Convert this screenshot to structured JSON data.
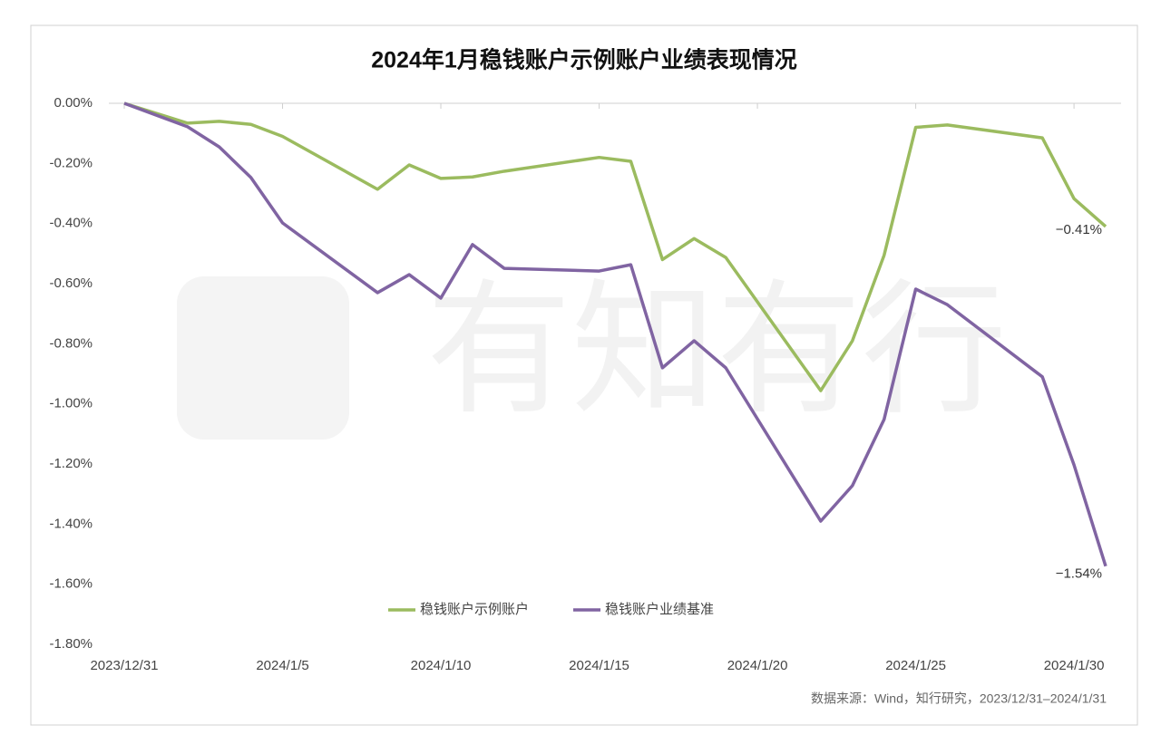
{
  "chart_data": {
    "type": "line",
    "title": "2024年1月稳钱账户示例账户业绩表现情况",
    "source": "数据来源：Wind，知行研究，2023/12/31–2024/1/31",
    "watermark": "有知有行",
    "x": [
      "2023/12/31",
      "2024/1/2",
      "2024/1/3",
      "2024/1/4",
      "2024/1/5",
      "2024/1/8",
      "2024/1/9",
      "2024/1/10",
      "2024/1/11",
      "2024/1/12",
      "2024/1/15",
      "2024/1/16",
      "2024/1/17",
      "2024/1/18",
      "2024/1/19",
      "2024/1/22",
      "2024/1/23",
      "2024/1/24",
      "2024/1/25",
      "2024/1/26",
      "2024/1/29",
      "2024/1/30",
      "2024/1/31"
    ],
    "xticks": [
      "2023/12/31",
      "2024/1/5",
      "2024/1/10",
      "2024/1/15",
      "2024/1/20",
      "2024/1/25",
      "2024/1/30"
    ],
    "xlim": [
      "2023/12/31",
      "2024/1/31"
    ],
    "ylim": [
      -1.8,
      0
    ],
    "yticks": [
      {
        "value": 0,
        "label": "0.00%"
      },
      {
        "value": -0.2,
        "label": "-0.20%"
      },
      {
        "value": -0.4,
        "label": "-0.40%"
      },
      {
        "value": -0.6,
        "label": "-0.60%"
      },
      {
        "value": -0.8,
        "label": "-0.80%"
      },
      {
        "value": -1.0,
        "label": "-1.00%"
      },
      {
        "value": -1.2,
        "label": "-1.20%"
      },
      {
        "value": -1.4,
        "label": "-1.40%"
      },
      {
        "value": -1.6,
        "label": "-1.60%"
      },
      {
        "value": -1.8,
        "label": "-1.80%"
      }
    ],
    "legend": "bottom",
    "series": [
      {
        "name": "稳钱账户示例账户",
        "color": "#9bbb5f",
        "values": [
          0,
          -0.066,
          -0.06,
          -0.07,
          -0.11,
          -0.286,
          -0.205,
          -0.25,
          -0.245,
          -0.226,
          -0.18,
          -0.193,
          -0.52,
          -0.45,
          -0.513,
          -0.956,
          -0.79,
          -0.506,
          -0.08,
          -0.072,
          -0.115,
          -0.317,
          -0.41
        ],
        "value_labels": [
          null,
          null,
          null,
          null,
          null,
          null,
          null,
          null,
          null,
          null,
          null,
          null,
          null,
          null,
          null,
          null,
          null,
          null,
          null,
          null,
          null,
          null,
          "−0.41%"
        ]
      },
      {
        "name": "稳钱账户业绩基准",
        "color": "#8064a2",
        "values": [
          0,
          -0.078,
          -0.145,
          -0.247,
          -0.398,
          -0.63,
          -0.57,
          -0.648,
          -0.47,
          -0.549,
          -0.558,
          -0.537,
          -0.88,
          -0.79,
          -0.88,
          -1.39,
          -1.272,
          -1.052,
          -0.618,
          -0.67,
          -0.91,
          -1.203,
          -1.54
        ],
        "value_labels": [
          null,
          null,
          null,
          null,
          null,
          null,
          null,
          null,
          null,
          null,
          null,
          null,
          null,
          null,
          null,
          null,
          null,
          null,
          null,
          null,
          null,
          null,
          "−1.54%"
        ]
      }
    ]
  }
}
